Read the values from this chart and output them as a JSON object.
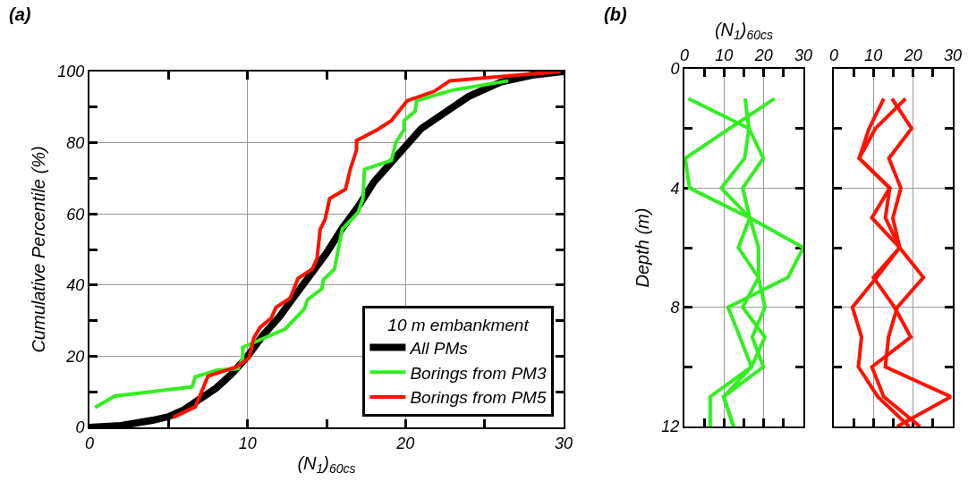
{
  "chart_data": [
    {
      "type": "line",
      "xlabel": "(N$_{1}$)$_{60cs}$",
      "ylabel": "Cumulative Percentile (%)",
      "legend_title": "10 m embankment",
      "legend": "bottom right",
      "grid": true,
      "annotations": [
        "(a)"
      ],
      "xlim": [
        0,
        30
      ],
      "xticks": [
        0,
        {
          "value": 5,
          "label": null
        },
        10,
        {
          "value": 15,
          "label": null
        },
        20,
        {
          "value": 25,
          "label": null
        },
        30
      ],
      "ylim": [
        0,
        100
      ],
      "yticks": [
        0,
        {
          "value": 10,
          "label": null
        },
        20,
        {
          "value": 30,
          "label": null
        },
        40,
        {
          "value": 50,
          "label": null
        },
        60,
        {
          "value": 70,
          "label": null
        },
        80,
        {
          "value": 90,
          "label": null
        },
        100
      ],
      "series": [
        {
          "name": "All PMs",
          "color": "#000000",
          "x": [
            0,
            2,
            4,
            5,
            6,
            7,
            8,
            9,
            10,
            11,
            12,
            13,
            14,
            15,
            16,
            17,
            18,
            19,
            20,
            21,
            22,
            23,
            24,
            25,
            26,
            28,
            30
          ],
          "values": [
            0,
            0.5,
            2,
            3,
            5,
            8,
            11,
            15,
            20,
            26,
            31,
            37,
            43,
            49,
            56,
            62,
            69,
            74,
            79,
            84,
            87,
            90,
            93,
            95,
            97,
            99,
            100
          ]
        },
        {
          "name": "Borings from PM3",
          "color": "#33ee22",
          "x": [
            0.35,
            1.6,
            6.5,
            6.7,
            8.1,
            9.4,
            9.7,
            9.7,
            12.4,
            13.6,
            13.8,
            14.7,
            14.8,
            15.5,
            16,
            17,
            17.3,
            17.4,
            19.1,
            19.4,
            19.9,
            19.9,
            20.6,
            20.7,
            23,
            26.5
          ],
          "values": [
            5.6,
            8.8,
            11.4,
            14.2,
            16.1,
            16.5,
            19.5,
            22.5,
            27.7,
            33.3,
            35.9,
            38.9,
            41.5,
            44.5,
            55.7,
            60.4,
            64.3,
            72.5,
            75,
            80.2,
            83.6,
            86.2,
            88.8,
            91.8,
            94.8,
            97.4
          ]
        },
        {
          "name": "Borings from PM5",
          "color": "#ff1100",
          "x": [
            5.3,
            6.7,
            7.5,
            9.3,
            10.1,
            10.4,
            10.8,
            11.5,
            11.8,
            12.7,
            13.2,
            14.1,
            14.4,
            14.6,
            14.9,
            15.2,
            16.2,
            16.5,
            16.9,
            16.9,
            18.2,
            19.1,
            20.1,
            21.8,
            22.8,
            29.8
          ],
          "values": [
            2.8,
            5.8,
            14.4,
            17,
            19.5,
            25.1,
            28.1,
            30.7,
            33.7,
            36.3,
            41.9,
            44.5,
            47.5,
            55.7,
            58.3,
            64.3,
            66.9,
            72.5,
            78,
            80.6,
            83.6,
            86.2,
            91.8,
            94.4,
            97.4,
            100
          ]
        }
      ]
    },
    {
      "type": "line",
      "xlabel": "(N$_{1}$)$_{60cs}$",
      "ylabel": "Depth (m)",
      "grid": true,
      "annotations": [
        "(b)"
      ],
      "xlim": [
        0,
        30
      ],
      "xticks": [
        0,
        {
          "value": 5,
          "label": null
        },
        10,
        {
          "value": 15,
          "label": null
        },
        20,
        {
          "value": 25,
          "label": null
        },
        30
      ],
      "ylim": [
        12,
        0
      ],
      "yticks": [
        0,
        {
          "value": 2,
          "label": null
        },
        4,
        {
          "value": 6,
          "label": null
        },
        8,
        {
          "value": 10,
          "label": null
        },
        12
      ],
      "series": [
        {
          "color": "#33ee22",
          "x": [
            1,
            16.3,
            19.9,
            14.7,
            16.5,
            18.7,
            18.7,
            20.3,
            17.1,
            19.9,
            9.9,
            12.4
          ],
          "values": [
            1,
            2,
            3,
            4,
            5,
            6,
            7,
            8,
            9,
            10,
            11,
            12
          ]
        },
        {
          "color": "#33ee22",
          "x": [
            15.3,
            16.3,
            15.2,
            9.3,
            16.5,
            13.6,
            18.7,
            14.7,
            20.3,
            16.9,
            6.5,
            6.5
          ],
          "values": [
            1,
            2,
            3,
            4,
            5,
            6,
            7,
            8,
            9,
            10,
            11,
            12
          ]
        },
        {
          "color": "#33ee22",
          "x": [
            22.7,
            11.4,
            0.2,
            1.3,
            16.5,
            30,
            26.1,
            11,
            14,
            16.9,
            9.9,
            12.4
          ],
          "values": [
            1,
            2,
            3,
            4,
            5,
            6,
            7,
            8,
            9,
            10,
            11,
            12
          ]
        }
      ]
    },
    {
      "type": "line",
      "grid": true,
      "tick_labels": "x",
      "xlim": [
        0,
        30
      ],
      "xticks": [
        0,
        {
          "value": 5,
          "label": null
        },
        10,
        {
          "value": 15,
          "label": null
        },
        20,
        {
          "value": 25,
          "label": null
        },
        30
      ],
      "ylim": [
        12,
        0
      ],
      "yticks": [
        0,
        {
          "value": 2,
          "label": null
        },
        4,
        {
          "value": 6,
          "label": null
        },
        8,
        {
          "value": 10,
          "label": null
        },
        12
      ],
      "series": [
        {
          "color": "#ff1100",
          "x": [
            12.6,
            8.9,
            6.4,
            14.1,
            9.6,
            16.6,
            10,
            15.3,
            19.4,
            9.6,
            12.6,
            21.7
          ],
          "values": [
            1,
            2,
            3,
            4,
            5,
            6,
            7,
            8,
            9,
            10,
            11,
            12
          ]
        },
        {
          "color": "#ff1100",
          "x": [
            14.7,
            19.6,
            13.9,
            16.9,
            14.9,
            16.6,
            22.6,
            16,
            13.8,
            13,
            29.5,
            16
          ],
          "values": [
            1,
            2,
            3,
            4,
            5,
            6,
            7,
            8,
            9,
            10,
            11,
            12
          ]
        },
        {
          "color": "#ff1100",
          "x": [
            18.1,
            10.5,
            6.4,
            14.1,
            13,
            16.6,
            10.8,
            4.7,
            7,
            6.2,
            11.1,
            19
          ],
          "values": [
            1,
            2,
            3,
            4,
            5,
            6,
            7,
            8,
            9,
            10,
            11,
            12
          ]
        }
      ]
    }
  ]
}
